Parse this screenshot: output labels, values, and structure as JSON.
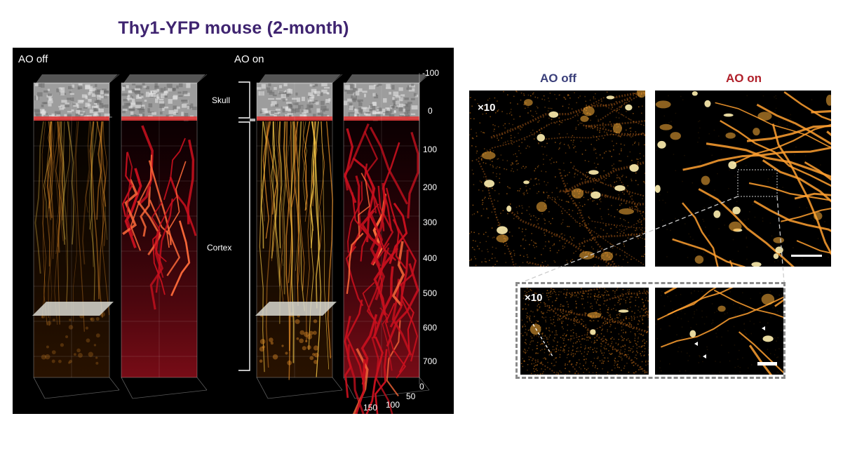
{
  "figure": {
    "title": "Thy1-YFP mouse (2-month)",
    "volume_panel": {
      "ao_off_label": "AO off",
      "ao_on_label": "AO on",
      "region_labels": {
        "skull": "Skull",
        "cortex": "Cortex"
      },
      "depth_ticks": [
        "-100",
        "0",
        "100",
        "200",
        "300",
        "400",
        "500",
        "600",
        "700"
      ],
      "base_ticks": [
        "0",
        "50",
        "100",
        "150"
      ]
    },
    "comparison_panel": {
      "ao_off_label": "AO off",
      "ao_on_label": "AO on",
      "ao_off_color": "#3a3f7a",
      "ao_on_color": "#b0202a",
      "gain_label_top": "×10",
      "gain_label_zoom": "×10"
    },
    "colors": {
      "neuron": "#f0952a",
      "vessel": "#c8101e",
      "skull": "#b8b8b8",
      "frame_dash": "#8a8a8a"
    }
  }
}
